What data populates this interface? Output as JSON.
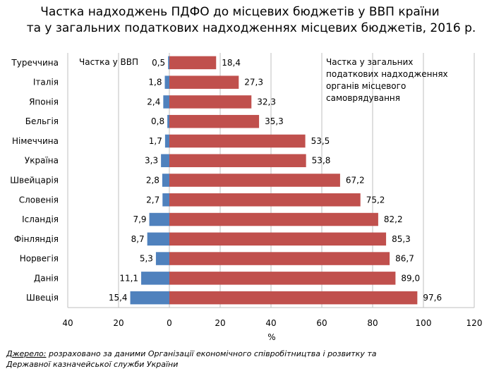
{
  "title_line1": "Частка надходжень ПДФО до місцевих бюджетів у ВВП країни",
  "title_line2": "та у загальних податкових надходженнях місцевих бюджетів, 2016 р.",
  "chart_data": {
    "type": "bar",
    "orientation": "horizontal",
    "categories": [
      "Туреччина",
      "Італія",
      "Японія",
      "Бельгія",
      "Німеччина",
      "Україна",
      "Швейцарія",
      "Словенія",
      "Ісландія",
      "Фінляндія",
      "Норвегія",
      "Данія",
      "Швеція"
    ],
    "series": [
      {
        "name": "Частка у ВВП",
        "color": "#4f81bd",
        "values": [
          0.5,
          1.8,
          2.4,
          0.8,
          1.7,
          3.3,
          2.8,
          2.7,
          7.9,
          8.7,
          5.3,
          11.1,
          15.4
        ],
        "labels": [
          "0,5",
          "1,8",
          "2,4",
          "0,8",
          "1,7",
          "3,3",
          "2,8",
          "2,7",
          "7,9",
          "8,7",
          "5,3",
          "11,1",
          "15,4"
        ],
        "direction": "negative"
      },
      {
        "name": "Частка у загальних податкових надходженнях органів місцевого самоврядування",
        "name_lines": [
          "Частка у загальних",
          "податкових надходженнях",
          "органів місцевого",
          "самоврядування"
        ],
        "color": "#c0504d",
        "values": [
          18.4,
          27.3,
          32.3,
          35.3,
          53.5,
          53.8,
          67.2,
          75.2,
          82.2,
          85.3,
          86.7,
          89.0,
          97.6
        ],
        "labels": [
          "18,4",
          "27,3",
          "32,3",
          "35,3",
          "53,5",
          "53,8",
          "67,2",
          "75,2",
          "82,2",
          "85,3",
          "86,7",
          "89,0",
          "97,6"
        ],
        "direction": "positive"
      }
    ],
    "x_ticks": [
      "40",
      "20",
      "0",
      "20",
      "40",
      "60",
      "80",
      "100",
      "120"
    ],
    "x_tick_values": [
      -40,
      -20,
      0,
      20,
      40,
      60,
      80,
      100,
      120
    ],
    "xlim": [
      -40,
      120
    ],
    "xlabel": "%",
    "grid": true
  },
  "source": {
    "label": "Джерело:",
    "text_line1": " розраховано за даними Організації економічного співробітництва і розвитку та",
    "text_line2": "Державної казначейської служби України"
  }
}
